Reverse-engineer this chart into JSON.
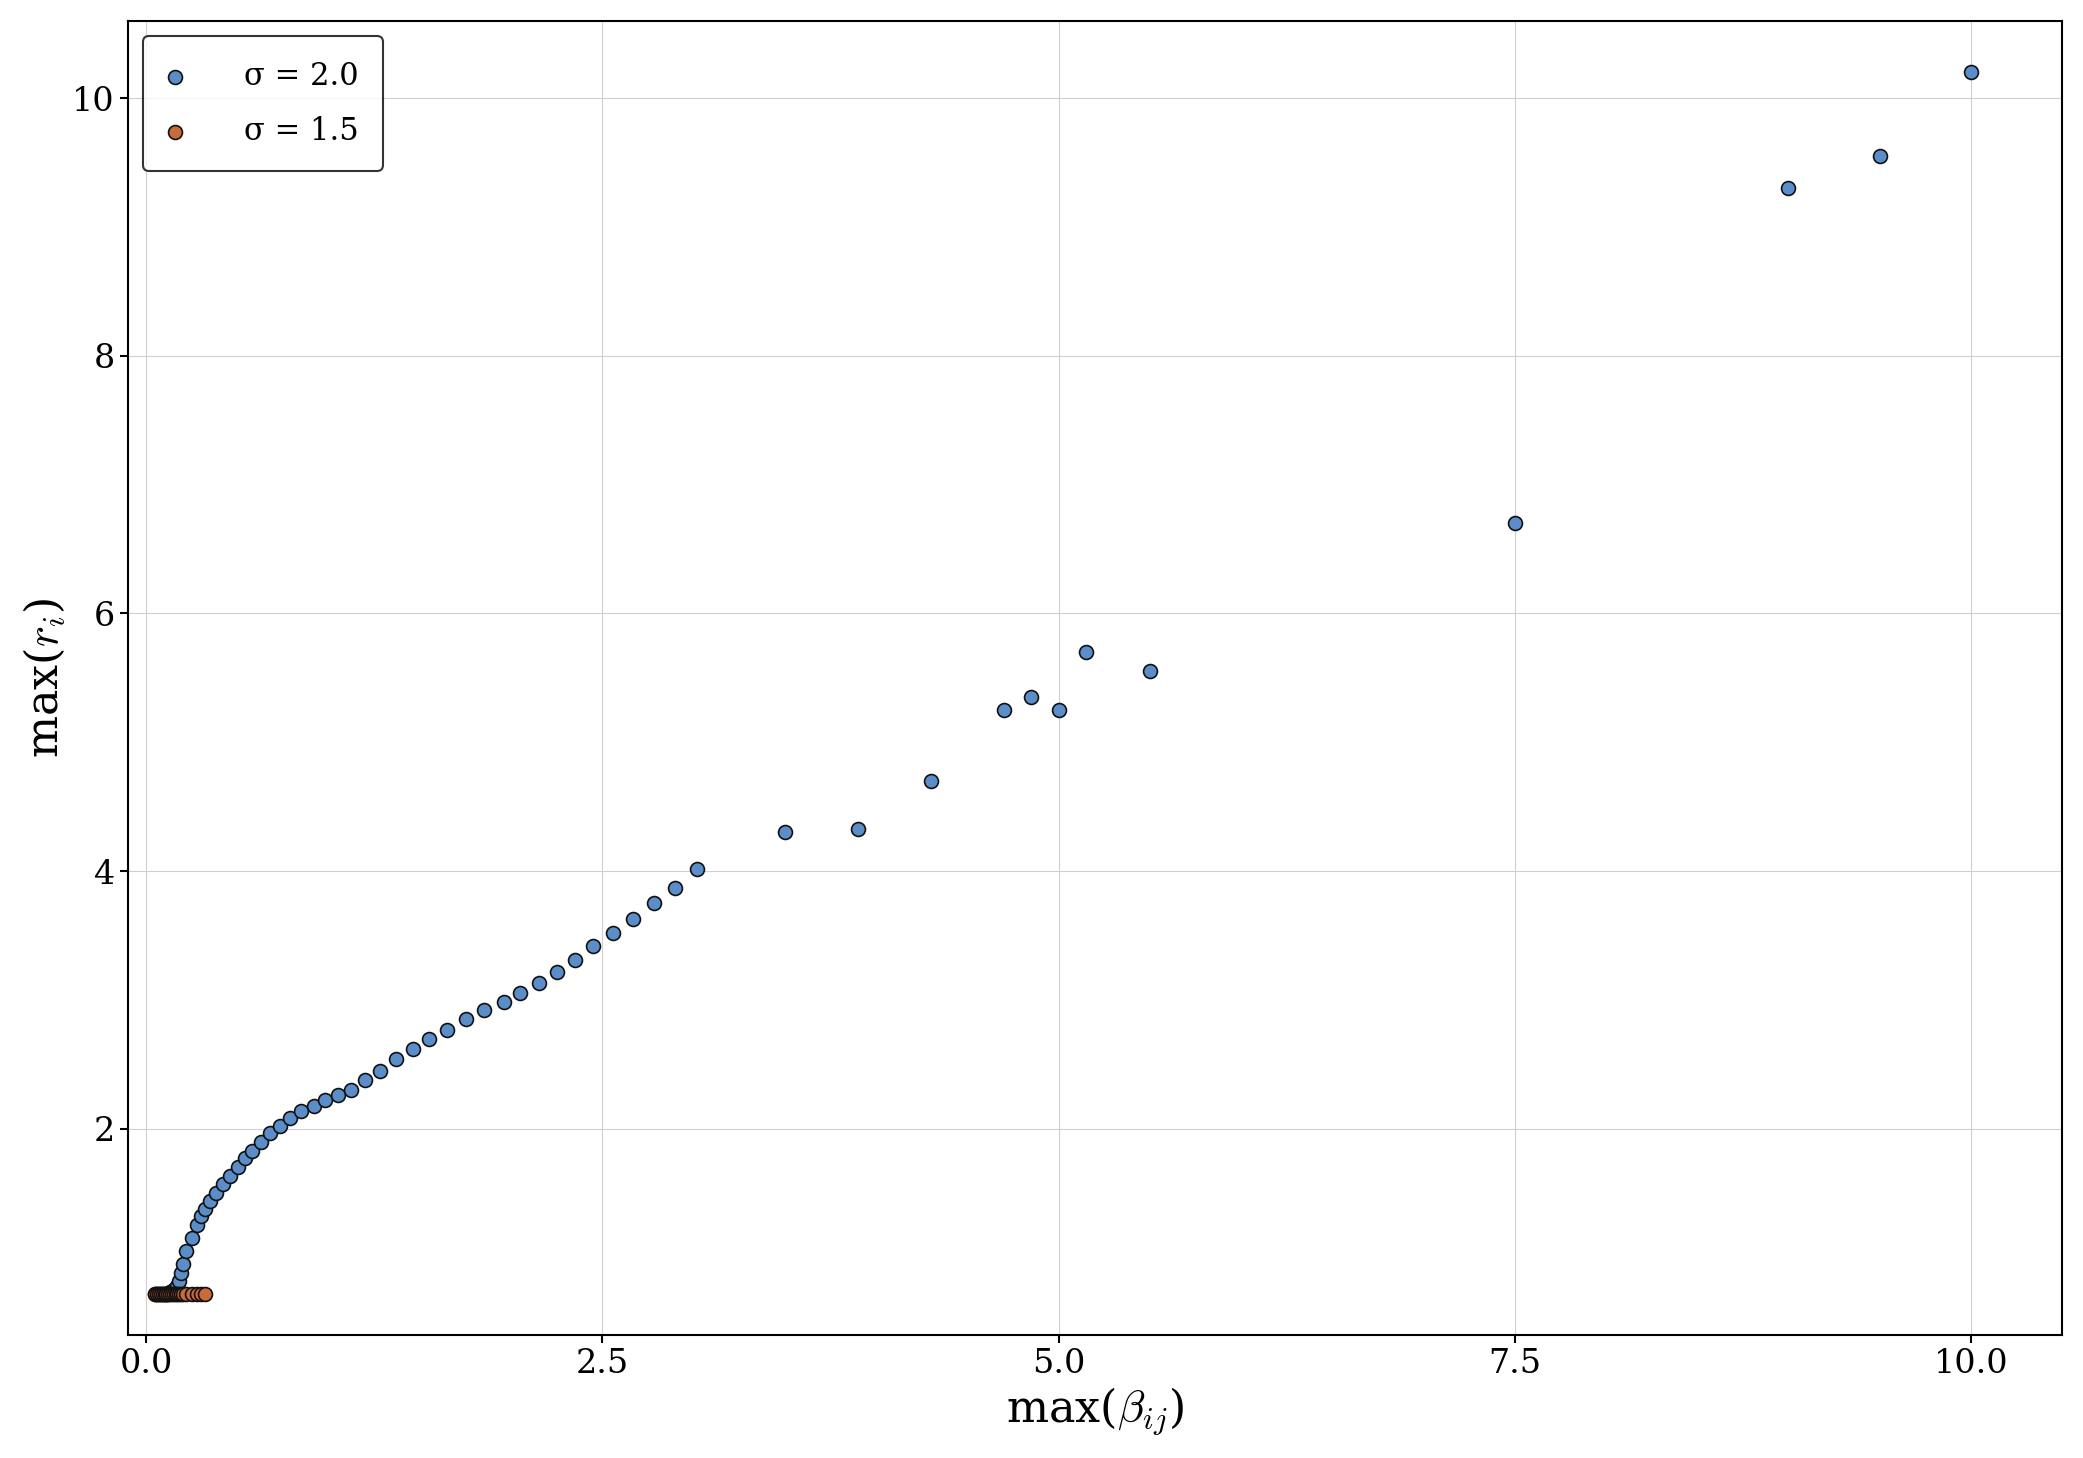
{
  "blue_x": [
    0.05,
    0.06,
    0.07,
    0.08,
    0.09,
    0.1,
    0.11,
    0.12,
    0.13,
    0.14,
    0.15,
    0.16,
    0.17,
    0.18,
    0.19,
    0.2,
    0.22,
    0.25,
    0.28,
    0.3,
    0.32,
    0.35,
    0.38,
    0.42,
    0.46,
    0.5,
    0.54,
    0.58,
    0.63,
    0.68,
    0.73,
    0.79,
    0.85,
    0.92,
    0.98,
    1.05,
    1.12,
    1.2,
    1.28,
    1.37,
    1.46,
    1.55,
    1.65,
    1.75,
    1.85,
    1.96,
    2.05,
    2.15,
    2.25,
    2.35,
    2.45,
    2.56,
    2.67,
    2.78,
    2.9,
    3.02,
    3.5,
    3.9,
    4.3,
    4.7,
    4.85,
    5.0,
    5.15,
    5.5,
    7.5,
    9.0,
    9.5,
    10.0
  ],
  "blue_y": [
    0.72,
    0.72,
    0.72,
    0.72,
    0.72,
    0.72,
    0.72,
    0.72,
    0.73,
    0.74,
    0.75,
    0.76,
    0.78,
    0.82,
    0.88,
    0.95,
    1.05,
    1.15,
    1.25,
    1.32,
    1.38,
    1.44,
    1.5,
    1.57,
    1.63,
    1.7,
    1.77,
    1.83,
    1.9,
    1.97,
    2.02,
    2.08,
    2.14,
    2.18,
    2.22,
    2.26,
    2.3,
    2.38,
    2.45,
    2.54,
    2.62,
    2.7,
    2.77,
    2.85,
    2.92,
    2.98,
    3.05,
    3.13,
    3.22,
    3.31,
    3.42,
    3.52,
    3.63,
    3.75,
    3.87,
    4.02,
    4.3,
    4.33,
    4.7,
    5.25,
    5.35,
    5.25,
    5.7,
    5.55,
    6.7,
    9.3,
    9.55,
    10.2
  ],
  "orange_x": [
    0.05,
    0.06,
    0.07,
    0.08,
    0.09,
    0.1,
    0.11,
    0.12,
    0.13,
    0.14,
    0.15,
    0.16,
    0.17,
    0.18,
    0.19,
    0.2,
    0.22,
    0.25,
    0.28,
    0.3,
    0.32
  ],
  "orange_y": [
    0.72,
    0.72,
    0.72,
    0.72,
    0.72,
    0.72,
    0.72,
    0.72,
    0.72,
    0.72,
    0.72,
    0.72,
    0.72,
    0.72,
    0.72,
    0.72,
    0.72,
    0.72,
    0.72,
    0.72,
    0.72
  ],
  "blue_color": "#5B8DC8",
  "orange_color": "#C96A3A",
  "xlabel": "max($\\beta_{ij}$)",
  "ylabel": "max($r_i$)",
  "xlim": [
    -0.1,
    10.5
  ],
  "ylim": [
    0.4,
    10.6
  ],
  "xticks": [
    0.0,
    2.5,
    5.0,
    7.5,
    10.0
  ],
  "yticks": [
    2,
    4,
    6,
    8,
    10
  ],
  "legend_labels": [
    "σ = 2.0",
    "σ = 1.5"
  ],
  "marker_size": 100,
  "edgecolor": "#111111",
  "edgewidth": 1.2,
  "background_color": "#ffffff",
  "grid_color": "#d0d0d0",
  "figsize": [
    20.83,
    14.58
  ],
  "dpi": 100,
  "tick_fontsize": 24,
  "label_fontsize": 32,
  "legend_fontsize": 22
}
